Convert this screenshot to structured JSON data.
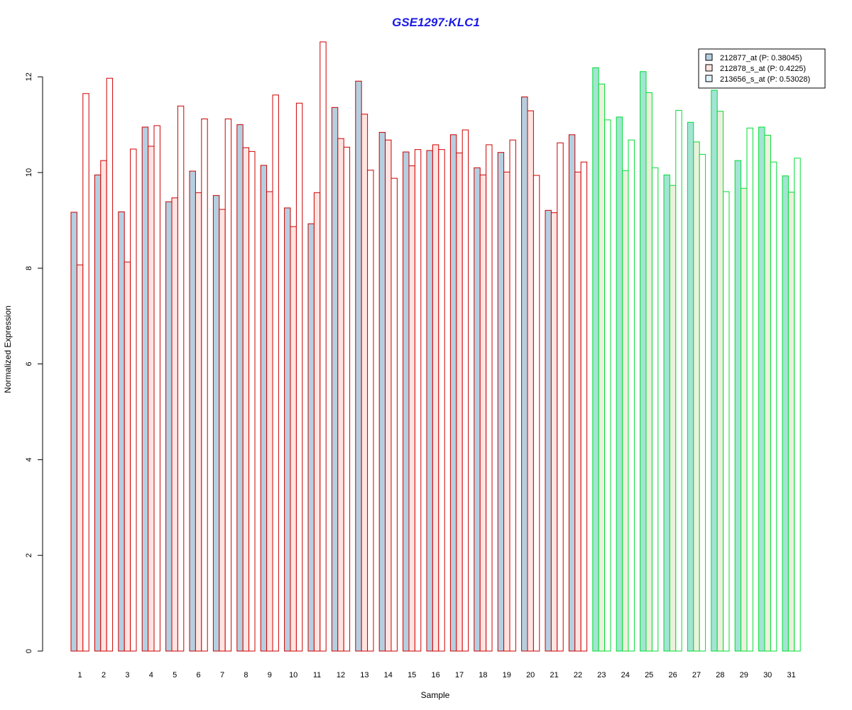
{
  "chart_data": {
    "type": "bar",
    "title": "GSE1297:KLC1",
    "xlabel": "Sample",
    "ylabel": "Normalized Expression",
    "ylim": [
      0,
      12.8
    ],
    "yticks": [
      "0",
      "2",
      "4",
      "6",
      "8",
      "10",
      "12"
    ],
    "categories": [
      "1",
      "2",
      "3",
      "4",
      "5",
      "6",
      "7",
      "8",
      "9",
      "10",
      "11",
      "12",
      "13",
      "14",
      "15",
      "16",
      "17",
      "18",
      "19",
      "20",
      "21",
      "22",
      "23",
      "24",
      "25",
      "26",
      "27",
      "28",
      "29",
      "30",
      "31"
    ],
    "group_colors": {
      "group1_border": "#cc0000",
      "group2_border": "#00dd33"
    },
    "legend_position": "top-right",
    "series": [
      {
        "name": "212877_at (P: 0.38045)",
        "fill_group1": "#b4cfe0",
        "fill_group2": "#a3e4d4",
        "values": [
          9.17,
          9.95,
          9.18,
          10.95,
          9.39,
          10.03,
          9.52,
          11.0,
          10.15,
          9.26,
          8.93,
          11.36,
          11.91,
          10.84,
          10.43,
          10.46,
          10.79,
          10.1,
          10.42,
          11.58,
          9.21,
          10.79,
          12.19,
          11.16,
          12.11,
          9.95,
          11.05,
          11.72,
          10.25,
          10.95,
          9.93
        ]
      },
      {
        "name": "212878_s_at (P: 0.4225)",
        "fill_group1": "#ffe4e1",
        "fill_group2": "#ecf1dc",
        "values": [
          8.07,
          10.25,
          8.13,
          10.55,
          9.47,
          9.58,
          9.23,
          10.52,
          9.6,
          8.87,
          9.58,
          10.71,
          11.22,
          10.68,
          10.14,
          10.58,
          10.41,
          9.95,
          10.01,
          11.29,
          9.16,
          10.01,
          11.85,
          10.04,
          11.67,
          9.73,
          10.64,
          11.28,
          9.67,
          10.78,
          9.59
        ]
      },
      {
        "name": "213656_s_at (P: 0.53028)",
        "fill_group1": "#ffffff",
        "fill_group2": "#ffffff",
        "values": [
          11.65,
          11.97,
          10.49,
          10.98,
          11.39,
          11.12,
          11.12,
          10.44,
          11.62,
          11.45,
          12.73,
          10.53,
          10.05,
          9.88,
          10.48,
          10.48,
          10.89,
          10.58,
          10.68,
          9.94,
          10.62,
          10.22,
          11.1,
          10.68,
          10.1,
          11.3,
          10.38,
          9.6,
          10.93,
          10.22,
          10.3
        ]
      }
    ]
  }
}
